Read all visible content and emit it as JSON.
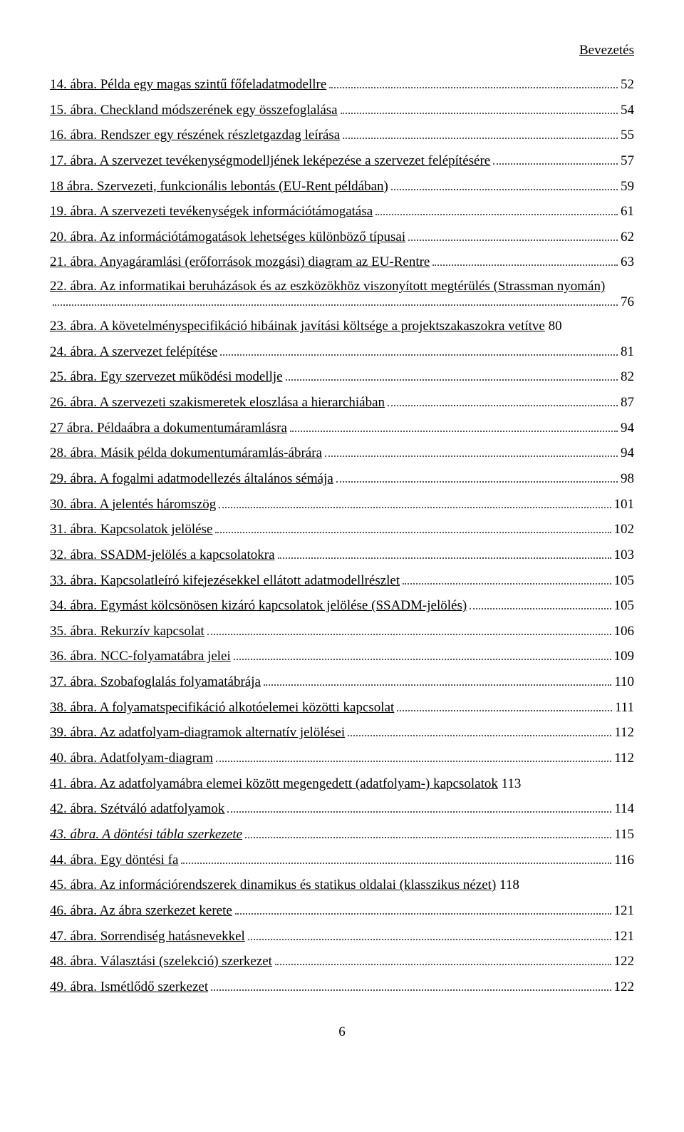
{
  "header": "Bevezetés",
  "footerPage": "6",
  "entries": [
    {
      "text": "14. ábra. Példa egy magas szintű főfeladatmodellre",
      "page": "52",
      "link": true
    },
    {
      "text": "15. ábra. Checkland módszerének egy összefoglalása",
      "page": "54",
      "link": true
    },
    {
      "text": "16. ábra. Rendszer egy részének részletgazdag leírása",
      "page": "55",
      "link": true
    },
    {
      "text": "17. ábra. A szervezet tevékenységmodelljének leképezése a szervezet felépítésére",
      "page": "57",
      "link": true
    },
    {
      "text": "18 ábra. Szervezeti, funkcionális lebontás (EU-Rent példában)",
      "page": "59",
      "link": true
    },
    {
      "text": "19. ábra. A szervezeti tevékenységek információtámogatása",
      "page": "61",
      "link": true
    },
    {
      "text": "20. ábra. Az információtámogatások lehetséges különböző típusai",
      "page": "62",
      "link": true
    },
    {
      "text": "21. ábra. Anyagáramlási (erőforrások mozgási) diagram az EU-Rentre",
      "page": "63",
      "link": true
    },
    {
      "text1": "22. ábra. Az informatikai beruházások és az eszközökhöz viszonyított megtérülés (Strassman nyomán)",
      "page": "76",
      "link": true,
      "wrap": true
    },
    {
      "text": "23. ábra. A követelményspecifikáció hibáinak javítási költsége a projektszakaszokra vetítve",
      "page": "80",
      "link": true,
      "trail": true
    },
    {
      "text": "24. ábra. A szervezet felépítése",
      "page": "81",
      "link": true
    },
    {
      "text": "25. ábra. Egy szervezet működési modellje",
      "page": "82",
      "link": true
    },
    {
      "text": "26. ábra. A szervezeti szakismeretek eloszlása a hierarchiában",
      "page": "87",
      "link": true
    },
    {
      "text": "27 ábra. Példaábra a dokumentumáramlásra",
      "page": "94",
      "link": true
    },
    {
      "text": "28. ábra. Másik példa dokumentumáramlás-ábrára",
      "page": "94",
      "link": true
    },
    {
      "text": "29. ábra. A fogalmi adatmodellezés általános sémája",
      "page": "98",
      "link": true
    },
    {
      "text": "30. ábra. A jelentés háromszög",
      "page": "101",
      "link": true
    },
    {
      "text": "31. ábra. Kapcsolatok jelölése",
      "page": "102",
      "link": true
    },
    {
      "text": "32. ábra. SSADM-jelölés a kapcsolatokra",
      "page": "103",
      "link": true
    },
    {
      "text": "33. ábra. Kapcsolatleíró kifejezésekkel ellátott adatmodellrészlet",
      "page": "105",
      "link": true
    },
    {
      "text": "34. ábra. Egymást kölcsönösen kizáró kapcsolatok jelölése (SSADM-jelölés)",
      "page": "105",
      "link": true
    },
    {
      "text": "35. ábra. Rekurzív kapcsolat",
      "page": "106",
      "link": true
    },
    {
      "text": "36. ábra. NCC-folyamatábra jelei",
      "page": "109",
      "link": true
    },
    {
      "text": "37. ábra. Szobafoglalás folyamatábrája",
      "page": "110",
      "link": true
    },
    {
      "text": "38. ábra. A folyamatspecifikáció alkotóelemei közötti kapcsolat",
      "page": "111",
      "link": true
    },
    {
      "text": "39. ábra. Az adatfolyam-diagramok alternatív jelölései",
      "page": "112",
      "link": true
    },
    {
      "text": "40. ábra. Adatfolyam-diagram",
      "page": "112",
      "link": true
    },
    {
      "text": "41. ábra. Az adatfolyamábra elemei között megengedett (adatfolyam-) kapcsolatok",
      "page": "113",
      "link": true,
      "trail": true
    },
    {
      "text": "42. ábra. Szétváló adatfolyamok",
      "page": "114",
      "link": true
    },
    {
      "text": "43. ábra. A döntési tábla szerkezete",
      "page": "115",
      "link": true,
      "italic": true
    },
    {
      "text": "44. ábra. Egy döntési fa",
      "page": "116",
      "link": true
    },
    {
      "text": "45. ábra. Az információrendszerek dinamikus és statikus oldalai (klasszikus nézet)",
      "page": "118",
      "link": true,
      "trail": true
    },
    {
      "text": "46. ábra. Az ábra szerkezet kerete",
      "page": "121",
      "link": true
    },
    {
      "text": "47. ábra. Sorrendiség hatásnevekkel",
      "page": "121",
      "link": true
    },
    {
      "text": "48. ábra. Választási (szelekció) szerkezet",
      "page": "122",
      "link": true
    },
    {
      "text": "49. ábra. Ismétlődő szerkezet",
      "page": "122",
      "link": true
    }
  ]
}
